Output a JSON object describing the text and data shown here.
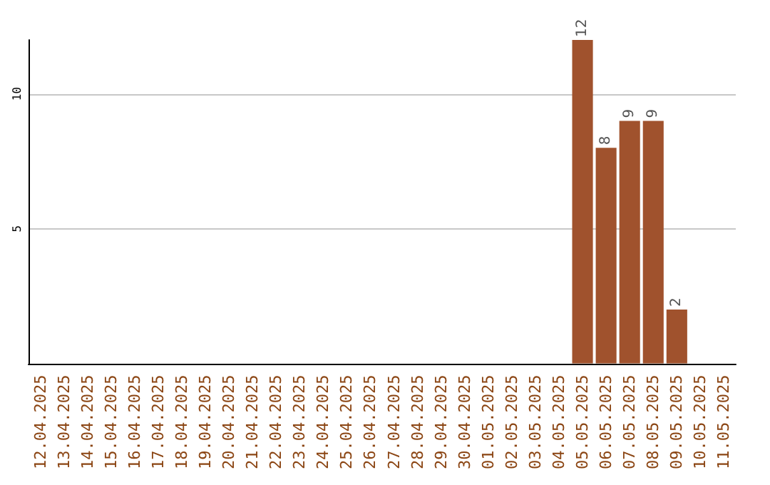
{
  "chart_data": {
    "type": "bar",
    "categories": [
      "12.04.2025",
      "13.04.2025",
      "14.04.2025",
      "15.04.2025",
      "16.04.2025",
      "17.04.2025",
      "18.04.2025",
      "19.04.2025",
      "20.04.2025",
      "21.04.2025",
      "22.04.2025",
      "23.04.2025",
      "24.04.2025",
      "25.04.2025",
      "26.04.2025",
      "27.04.2025",
      "28.04.2025",
      "29.04.2025",
      "30.04.2025",
      "01.05.2025",
      "02.05.2025",
      "03.05.2025",
      "04.05.2025",
      "05.05.2025",
      "06.05.2025",
      "07.05.2025",
      "08.05.2025",
      "09.05.2025",
      "10.05.2025",
      "11.05.2025"
    ],
    "values": [
      0,
      0,
      0,
      0,
      0,
      0,
      0,
      0,
      0,
      0,
      0,
      0,
      0,
      0,
      0,
      0,
      0,
      0,
      0,
      0,
      0,
      0,
      0,
      12,
      8,
      9,
      9,
      2,
      0,
      0
    ],
    "value_labels": [
      null,
      null,
      null,
      null,
      null,
      null,
      null,
      null,
      null,
      null,
      null,
      null,
      null,
      null,
      null,
      null,
      null,
      null,
      null,
      null,
      null,
      null,
      null,
      "12",
      "8",
      "9",
      "9",
      "2",
      null,
      null
    ],
    "color": "#a0522d",
    "ylim": [
      0,
      12
    ],
    "yticks": [
      5,
      10
    ],
    "grid": "y"
  }
}
